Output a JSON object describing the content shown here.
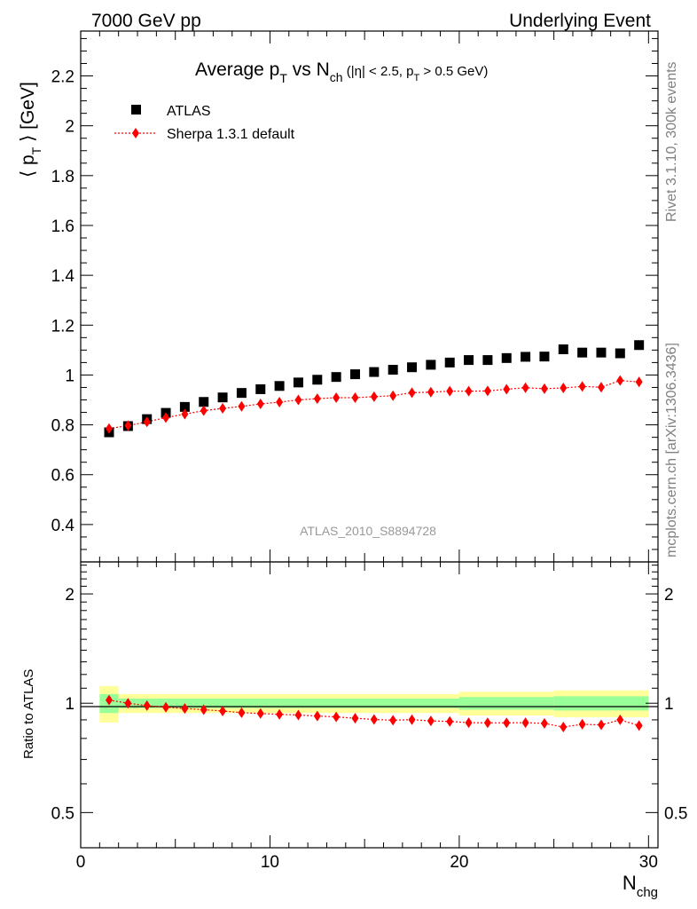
{
  "header": {
    "left": "7000 GeV pp",
    "right": "Underlying Event"
  },
  "side": {
    "rivet": "Rivet 3.1.10,  300k events",
    "mcplots": "mcplots.cern.ch [arXiv:1306.3436]"
  },
  "watermark": "ATLAS_2010_S8894728",
  "title": {
    "main_prefix": "Average p",
    "sub_T": "T",
    "vs": " vs N",
    "sub_ch": "ch",
    "cuts_prefix": " (|η| < 2.5, p",
    "cuts_sub": "T",
    "cuts_suffix": " > 0.5 GeV)"
  },
  "legend": {
    "data": "ATLAS",
    "mc": "Sherpa 1.3.1 default"
  },
  "axes": {
    "ylabel_main": "⟨ p",
    "ylabel_main_sub": "T",
    "ylabel_main_suffix": " ⟩ [GeV]",
    "ylabel_ratio": "Ratio to ATLAS",
    "xlabel": "N",
    "xlabel_sub": "chg"
  },
  "colors": {
    "data": "#000000",
    "mc": "#ff0000",
    "band_outer": "#ffff99",
    "band_inner": "#99ff99",
    "watermark": "#999999"
  },
  "chart_data": {
    "type": "scatter",
    "x_range": [
      0,
      30.5
    ],
    "ylim_main": [
      0.25,
      2.38
    ],
    "ylim_ratio": [
      0.4,
      2.45
    ],
    "ratio_log_scale": true,
    "x_ticks": [
      0,
      10,
      20,
      30
    ],
    "y_ticks_main": [
      0.4,
      0.6,
      0.8,
      1,
      1.2,
      1.4,
      1.6,
      1.8,
      2,
      2.2
    ],
    "y_ticks_main_labels": [
      "0.4",
      "0.6",
      "0.8",
      "1",
      "1.2",
      "1.4",
      "1.6",
      "1.8",
      "2",
      "2.2"
    ],
    "y_ticks_ratio": [
      0.5,
      1,
      2
    ],
    "y_ticks_ratio_labels": [
      "0.5",
      "1",
      "2"
    ],
    "x_tick_labels": [
      "0",
      "10",
      "20",
      "30"
    ],
    "x": [
      1.5,
      2.5,
      3.5,
      4.5,
      5.5,
      6.5,
      7.5,
      8.5,
      9.5,
      10.5,
      11.5,
      12.5,
      13.5,
      14.5,
      15.5,
      16.5,
      17.5,
      18.5,
      19.5,
      20.5,
      21.5,
      22.5,
      23.5,
      24.5,
      25.5,
      26.5,
      27.5,
      28.5,
      29.5
    ],
    "series": [
      {
        "name": "ATLAS",
        "values": [
          0.77,
          0.795,
          0.823,
          0.848,
          0.872,
          0.892,
          0.91,
          0.928,
          0.943,
          0.956,
          0.97,
          0.981,
          0.992,
          1.003,
          1.012,
          1.021,
          1.031,
          1.041,
          1.05,
          1.06,
          1.06,
          1.068,
          1.073,
          1.074,
          1.103,
          1.09,
          1.09,
          1.087,
          1.12
        ]
      },
      {
        "name": "Sherpa 1.3.1 default",
        "values": [
          0.785,
          0.797,
          0.812,
          0.829,
          0.843,
          0.857,
          0.866,
          0.874,
          0.884,
          0.891,
          0.9,
          0.905,
          0.909,
          0.909,
          0.913,
          0.917,
          0.929,
          0.931,
          0.935,
          0.935,
          0.936,
          0.943,
          0.949,
          0.945,
          0.948,
          0.954,
          0.951,
          0.978,
          0.972
        ]
      }
    ],
    "ratio": {
      "values": [
        1.02,
        1.0,
        0.985,
        0.975,
        0.967,
        0.96,
        0.952,
        0.942,
        0.937,
        0.932,
        0.928,
        0.922,
        0.917,
        0.909,
        0.902,
        0.898,
        0.901,
        0.894,
        0.891,
        0.884,
        0.883,
        0.883,
        0.884,
        0.88,
        0.86,
        0.875,
        0.872,
        0.9,
        0.868
      ],
      "band_outer": [
        [
          1,
          2,
          0.115
        ],
        [
          2,
          20,
          0.06
        ],
        [
          20,
          25,
          0.075
        ],
        [
          25,
          30,
          0.085
        ]
      ],
      "band_inner": [
        [
          1,
          2,
          0.06
        ],
        [
          2,
          20,
          0.03
        ],
        [
          20,
          25,
          0.04
        ],
        [
          25,
          30,
          0.045
        ]
      ]
    }
  }
}
